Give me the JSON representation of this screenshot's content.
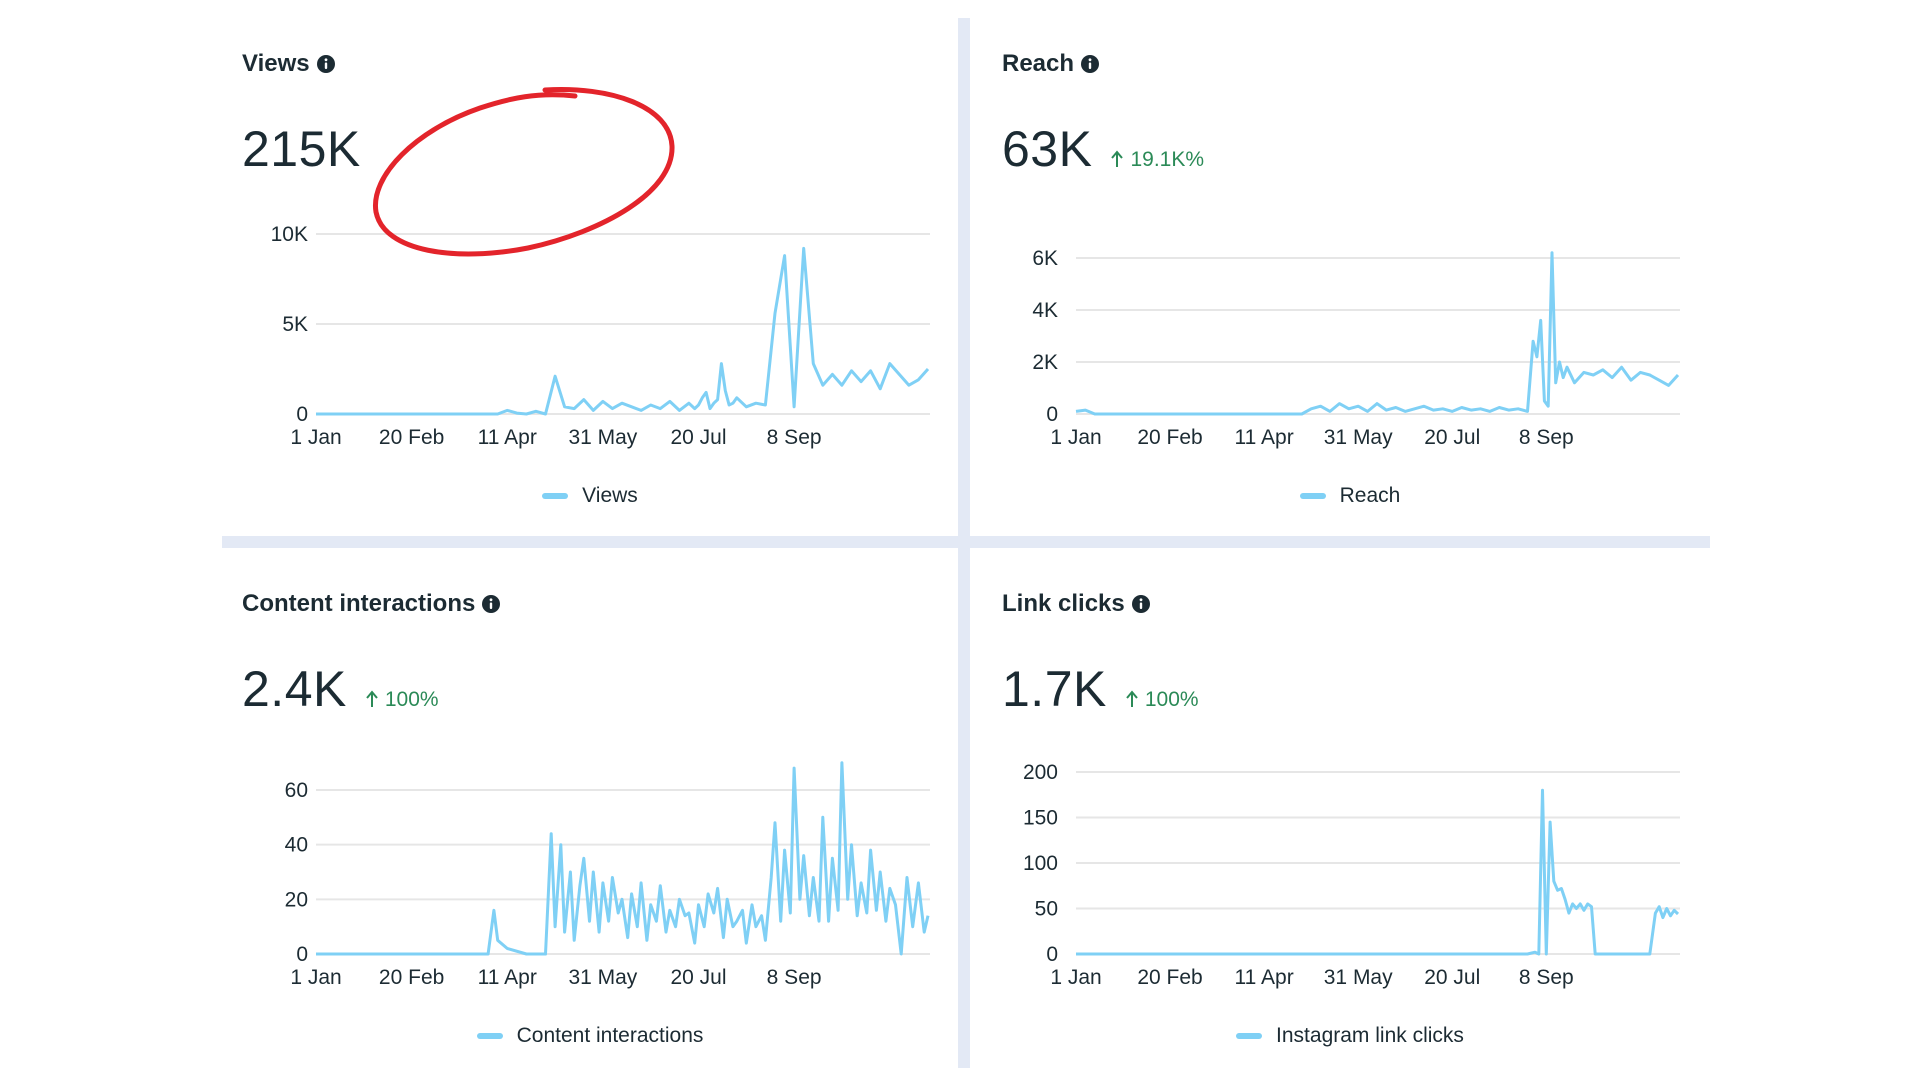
{
  "colors": {
    "line": "#7fd0f5",
    "grid": "#e6e6e6",
    "text": "#1c2b33",
    "positive": "#2b8a57",
    "annotation": "#e3242b",
    "divider": "#e3e9f5"
  },
  "icons": {
    "info": "info-icon",
    "arrow": "arrow-up-icon"
  },
  "panels": [
    {
      "title": "Views",
      "value": "215K",
      "delta": "",
      "legend": "Views",
      "annotated": true
    },
    {
      "title": "Reach",
      "value": "63K",
      "delta": "19.1K%",
      "legend": "Reach"
    },
    {
      "title": "Content interactions",
      "value": "2.4K",
      "delta": "100%",
      "legend": "Content interactions"
    },
    {
      "title": "Link clicks",
      "value": "1.7K",
      "delta": "100%",
      "legend": "Instagram link clicks"
    }
  ],
  "chart_data": [
    {
      "type": "line",
      "title": "Views",
      "x_ticks": [
        "1 Jan",
        "20 Feb",
        "11 Apr",
        "31 May",
        "20 Jul",
        "8 Sep"
      ],
      "y_ticks": [
        "0",
        "5K",
        "10K"
      ],
      "ylim": [
        0,
        10000
      ],
      "x_range_days": [
        0,
        320
      ],
      "grid": true,
      "legend_position": "bottom",
      "series": [
        {
          "name": "Views",
          "x": [
            0,
            20,
            40,
            60,
            80,
            90,
            95,
            100,
            105,
            110,
            115,
            120,
            125,
            130,
            135,
            140,
            145,
            150,
            155,
            160,
            165,
            170,
            175,
            180,
            185,
            190,
            195,
            198,
            200,
            202,
            204,
            206,
            208,
            210,
            212,
            214,
            216,
            218,
            220,
            225,
            230,
            235,
            240,
            245,
            250,
            255,
            260,
            265,
            270,
            275,
            280,
            285,
            290,
            295,
            300,
            305,
            310,
            315,
            320
          ],
          "values": [
            0,
            0,
            0,
            0,
            0,
            0,
            0,
            200,
            50,
            0,
            150,
            0,
            2100,
            400,
            300,
            800,
            200,
            700,
            300,
            600,
            400,
            200,
            500,
            300,
            700,
            200,
            600,
            300,
            500,
            900,
            1200,
            300,
            600,
            800,
            2800,
            1300,
            500,
            600,
            900,
            400,
            600,
            500,
            5600,
            8800,
            400,
            9200,
            2800,
            1600,
            2200,
            1600,
            2400,
            1800,
            2400,
            1400,
            2800,
            2200,
            1600,
            1900,
            2500
          ]
        }
      ]
    },
    {
      "type": "line",
      "title": "Reach",
      "x_ticks": [
        "1 Jan",
        "20 Feb",
        "11 Apr",
        "31 May",
        "20 Jul",
        "8 Sep"
      ],
      "y_ticks": [
        "0",
        "2K",
        "4K",
        "6K"
      ],
      "ylim": [
        0,
        6000
      ],
      "x_range_days": [
        0,
        320
      ],
      "grid": true,
      "legend_position": "bottom",
      "series": [
        {
          "name": "Reach",
          "x": [
            0,
            5,
            10,
            20,
            40,
            60,
            80,
            90,
            100,
            110,
            120,
            125,
            130,
            135,
            140,
            145,
            150,
            155,
            160,
            165,
            170,
            175,
            180,
            185,
            190,
            195,
            200,
            205,
            210,
            215,
            220,
            225,
            230,
            235,
            240,
            243,
            245,
            247,
            249,
            251,
            253,
            255,
            257,
            259,
            261,
            265,
            270,
            275,
            280,
            285,
            290,
            295,
            300,
            305,
            310,
            315,
            320
          ],
          "values": [
            100,
            150,
            0,
            0,
            0,
            0,
            0,
            0,
            0,
            0,
            0,
            200,
            300,
            100,
            400,
            200,
            300,
            100,
            400,
            150,
            250,
            100,
            200,
            300,
            150,
            200,
            100,
            250,
            150,
            200,
            100,
            250,
            150,
            200,
            100,
            2800,
            2200,
            3600,
            500,
            300,
            6200,
            1200,
            2000,
            1400,
            1800,
            1200,
            1600,
            1500,
            1700,
            1400,
            1800,
            1300,
            1600,
            1500,
            1300,
            1100,
            1500
          ]
        }
      ]
    },
    {
      "type": "line",
      "title": "Content interactions",
      "x_ticks": [
        "1 Jan",
        "20 Feb",
        "11 Apr",
        "31 May",
        "20 Jul",
        "8 Sep"
      ],
      "y_ticks": [
        "0",
        "20",
        "40",
        "60"
      ],
      "ylim": [
        0,
        60
      ],
      "x_range_days": [
        0,
        320
      ],
      "grid": true,
      "legend_position": "bottom",
      "series": [
        {
          "name": "Content interactions",
          "x": [
            0,
            20,
            40,
            60,
            80,
            90,
            93,
            95,
            100,
            110,
            120,
            123,
            125,
            128,
            130,
            133,
            135,
            138,
            140,
            143,
            145,
            148,
            150,
            153,
            155,
            158,
            160,
            163,
            165,
            168,
            170,
            173,
            175,
            178,
            180,
            183,
            185,
            188,
            190,
            193,
            195,
            198,
            200,
            203,
            205,
            208,
            210,
            213,
            215,
            218,
            220,
            223,
            225,
            228,
            230,
            233,
            235,
            238,
            240,
            243,
            245,
            248,
            250,
            253,
            255,
            258,
            260,
            263,
            265,
            268,
            270,
            273,
            275,
            278,
            280,
            283,
            285,
            288,
            290,
            293,
            295,
            298,
            300,
            303,
            306,
            309,
            312,
            315,
            318,
            320
          ],
          "values": [
            0,
            0,
            0,
            0,
            0,
            0,
            16,
            5,
            2,
            0,
            0,
            44,
            10,
            40,
            8,
            30,
            5,
            25,
            35,
            12,
            30,
            8,
            26,
            12,
            28,
            15,
            20,
            6,
            22,
            10,
            26,
            5,
            18,
            12,
            25,
            8,
            16,
            10,
            20,
            14,
            15,
            4,
            18,
            10,
            22,
            15,
            24,
            6,
            20,
            10,
            12,
            16,
            4,
            18,
            10,
            14,
            5,
            28,
            48,
            12,
            38,
            15,
            68,
            20,
            36,
            14,
            28,
            12,
            50,
            12,
            35,
            16,
            70,
            20,
            40,
            14,
            26,
            15,
            38,
            16,
            30,
            12,
            24,
            18,
            0,
            28,
            10,
            26,
            8,
            14
          ]
        }
      ]
    },
    {
      "type": "line",
      "title": "Link clicks",
      "x_ticks": [
        "1 Jan",
        "20 Feb",
        "11 Apr",
        "31 May",
        "20 Jul",
        "8 Sep"
      ],
      "y_ticks": [
        "0",
        "50",
        "100",
        "150",
        "200"
      ],
      "ylim": [
        0,
        200
      ],
      "x_range_days": [
        0,
        320
      ],
      "grid": true,
      "legend_position": "bottom",
      "series": [
        {
          "name": "Instagram link clicks",
          "x": [
            0,
            40,
            80,
            120,
            160,
            200,
            230,
            240,
            244,
            246,
            248,
            250,
            252,
            254,
            256,
            258,
            260,
            262,
            264,
            266,
            268,
            270,
            272,
            274,
            276,
            280,
            290,
            300,
            305,
            308,
            310,
            312,
            314,
            316,
            318,
            320
          ],
          "values": [
            0,
            0,
            0,
            0,
            0,
            0,
            0,
            0,
            2,
            0,
            180,
            0,
            145,
            80,
            70,
            72,
            60,
            45,
            55,
            50,
            55,
            48,
            55,
            52,
            0,
            0,
            0,
            0,
            0,
            45,
            52,
            40,
            50,
            42,
            48,
            44
          ]
        }
      ]
    }
  ]
}
